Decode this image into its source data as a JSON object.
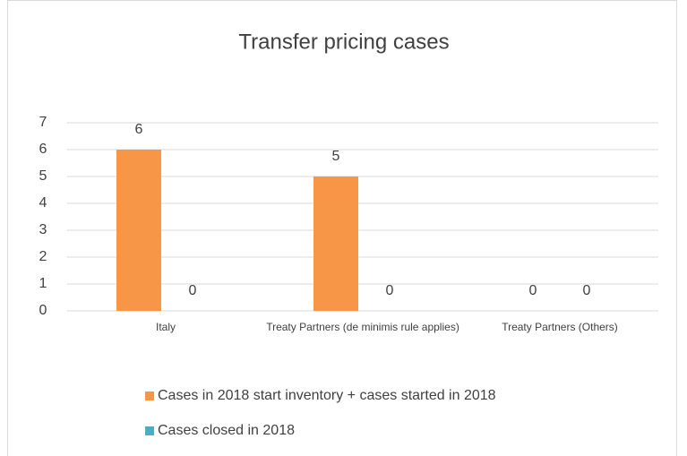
{
  "chart_data": {
    "type": "bar",
    "title": "Transfer pricing cases",
    "categories": [
      "Italy",
      "Treaty Partners (de minimis rule applies)",
      "Treaty Partners (Others)"
    ],
    "series": [
      {
        "name": "Cases in 2018 start inventory + cases started in 2018",
        "color": "#f79646",
        "values": [
          6,
          5,
          0
        ]
      },
      {
        "name": "Cases closed in 2018",
        "color": "#4bacc6",
        "values": [
          0,
          0,
          0
        ]
      }
    ],
    "ylim": [
      0,
      7
    ],
    "yticks": [
      0,
      1,
      2,
      3,
      4,
      5,
      6,
      7
    ],
    "grid": true,
    "legend": "bottom"
  }
}
